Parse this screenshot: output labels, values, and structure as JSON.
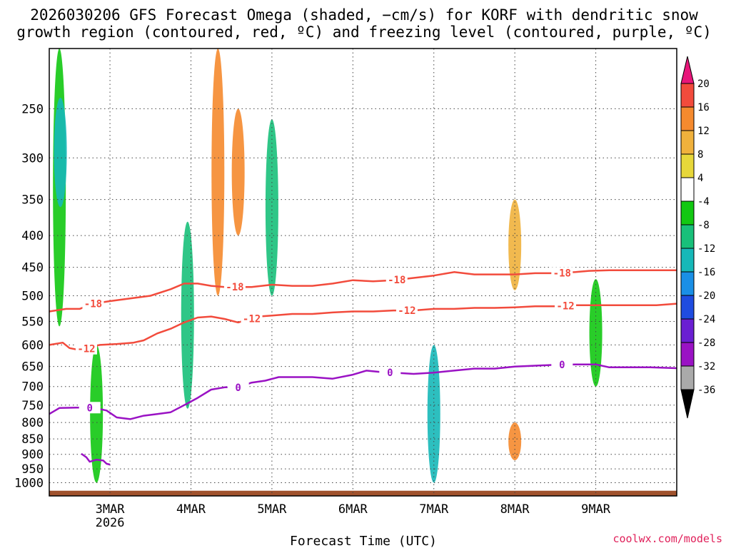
{
  "title": {
    "line1": "2026030206 GFS Forecast Omega (shaded, −cm/s) for KORF with dendritic snow",
    "line2": "growth region (contoured, red, ºC) and freezing level (contoured, purple, ºC)"
  },
  "xlabel": "Forecast Time (UTC)",
  "credit": "coolwx.com/models",
  "chart_data": {
    "type": "time-height cross section",
    "title": "2026030206 GFS Forecast Omega (shaded, −cm/s) for KORF with dendritic snow growth region (contoured, red, ºC) and freezing level (contoured, purple, ºC)",
    "xlabel": "Forecast Time (UTC)",
    "x_range_hours": [
      0,
      186
    ],
    "x_ticks": [
      {
        "hour": 18,
        "label": "3MAR",
        "sublabel": "2026"
      },
      {
        "hour": 42,
        "label": "4MAR"
      },
      {
        "hour": 66,
        "label": "5MAR"
      },
      {
        "hour": 90,
        "label": "6MAR"
      },
      {
        "hour": 114,
        "label": "7MAR"
      },
      {
        "hour": 138,
        "label": "8MAR"
      },
      {
        "hour": 162,
        "label": "9MAR"
      }
    ],
    "y_scale": "log",
    "y_range_hpa": [
      1050,
      200
    ],
    "y_ticks": [
      250,
      300,
      350,
      400,
      450,
      500,
      550,
      600,
      650,
      700,
      750,
      800,
      850,
      900,
      950,
      1000
    ],
    "colorbar": {
      "levels": [
        20,
        16,
        12,
        8,
        4,
        -4,
        -8,
        -12,
        -16,
        -20,
        -24,
        -28,
        -32,
        -36
      ],
      "colors": [
        "#e8167a",
        "#f24b3c",
        "#f58a2e",
        "#f0b13c",
        "#e7d73a",
        "#ffffff",
        "#12c812",
        "#18c07a",
        "#16b8b8",
        "#1a8fe6",
        "#1f4ce0",
        "#6a1fd2",
        "#9a12c4",
        "#aaaaaa",
        "#000000"
      ]
    },
    "contours": [
      {
        "name": "-18",
        "color": "#f24b3c",
        "points": [
          [
            0,
            530
          ],
          [
            5,
            525
          ],
          [
            9,
            525
          ],
          [
            13,
            515
          ],
          [
            18,
            510
          ],
          [
            24,
            505
          ],
          [
            30,
            500
          ],
          [
            36,
            488
          ],
          [
            40,
            478
          ],
          [
            44,
            478
          ],
          [
            48,
            482
          ],
          [
            52,
            484
          ],
          [
            56,
            484
          ],
          [
            60,
            484
          ],
          [
            66,
            480
          ],
          [
            72,
            482
          ],
          [
            78,
            482
          ],
          [
            84,
            478
          ],
          [
            90,
            472
          ],
          [
            96,
            474
          ],
          [
            102,
            472
          ],
          [
            108,
            468
          ],
          [
            114,
            464
          ],
          [
            120,
            458
          ],
          [
            126,
            462
          ],
          [
            132,
            462
          ],
          [
            138,
            462
          ],
          [
            144,
            460
          ],
          [
            150,
            460
          ],
          [
            156,
            458
          ],
          [
            160,
            456
          ],
          [
            166,
            455
          ],
          [
            172,
            455
          ],
          [
            178,
            455
          ],
          [
            186,
            455
          ]
        ],
        "labels": [
          [
            13,
            "-18"
          ],
          [
            55,
            "-18"
          ],
          [
            103,
            "-18"
          ],
          [
            152,
            "-18"
          ]
        ]
      },
      {
        "name": "-12",
        "color": "#f24b3c",
        "points": [
          [
            0,
            600
          ],
          [
            4,
            595
          ],
          [
            6,
            607
          ],
          [
            8,
            610
          ],
          [
            10,
            612
          ],
          [
            12,
            605
          ],
          [
            15,
            600
          ],
          [
            20,
            598
          ],
          [
            25,
            595
          ],
          [
            28,
            590
          ],
          [
            32,
            575
          ],
          [
            36,
            565
          ],
          [
            40,
            552
          ],
          [
            44,
            542
          ],
          [
            48,
            540
          ],
          [
            52,
            545
          ],
          [
            56,
            552
          ],
          [
            58,
            548
          ],
          [
            62,
            540
          ],
          [
            66,
            538
          ],
          [
            72,
            535
          ],
          [
            78,
            535
          ],
          [
            84,
            532
          ],
          [
            90,
            530
          ],
          [
            96,
            530
          ],
          [
            102,
            528
          ],
          [
            108,
            528
          ],
          [
            114,
            525
          ],
          [
            120,
            525
          ],
          [
            126,
            523
          ],
          [
            132,
            523
          ],
          [
            138,
            522
          ],
          [
            144,
            520
          ],
          [
            150,
            520
          ],
          [
            156,
            518
          ],
          [
            160,
            518
          ],
          [
            166,
            518
          ],
          [
            172,
            518
          ],
          [
            180,
            518
          ],
          [
            186,
            515
          ]
        ],
        "labels": [
          [
            11,
            "-12"
          ],
          [
            60,
            "-12"
          ],
          [
            106,
            "-12"
          ],
          [
            153,
            "-12"
          ]
        ]
      },
      {
        "name": "0",
        "color": "#9a12c4",
        "points": [
          [
            0,
            775
          ],
          [
            3,
            758
          ],
          [
            8,
            757
          ],
          [
            13,
            757
          ],
          [
            17,
            765
          ],
          [
            20,
            785
          ],
          [
            24,
            790
          ],
          [
            28,
            780
          ],
          [
            32,
            775
          ],
          [
            36,
            770
          ],
          [
            40,
            750
          ],
          [
            44,
            730
          ],
          [
            48,
            708
          ],
          [
            52,
            702
          ],
          [
            56,
            702
          ],
          [
            60,
            690
          ],
          [
            64,
            685
          ],
          [
            68,
            676
          ],
          [
            72,
            676
          ],
          [
            78,
            676
          ],
          [
            84,
            680
          ],
          [
            90,
            670
          ],
          [
            94,
            660
          ],
          [
            98,
            663
          ],
          [
            102,
            665
          ],
          [
            108,
            668
          ],
          [
            114,
            665
          ],
          [
            120,
            660
          ],
          [
            126,
            655
          ],
          [
            132,
            655
          ],
          [
            138,
            650
          ],
          [
            144,
            648
          ],
          [
            150,
            646
          ],
          [
            156,
            645
          ],
          [
            162,
            645
          ],
          [
            166,
            652
          ],
          [
            172,
            652
          ],
          [
            178,
            652
          ],
          [
            186,
            654
          ]
        ],
        "labels": [
          [
            12,
            "0"
          ],
          [
            56,
            "0"
          ],
          [
            101,
            "0"
          ],
          [
            152,
            "0"
          ]
        ]
      },
      {
        "name": "0-loop",
        "color": "#9a12c4",
        "points": [
          [
            9.5,
            898
          ],
          [
            11,
            910
          ],
          [
            12,
            925
          ],
          [
            14,
            918
          ],
          [
            16,
            921
          ],
          [
            17,
            932
          ],
          [
            18,
            935
          ]
        ],
        "labels": []
      }
    ],
    "shaded_features": [
      {
        "hour": 3,
        "p_top": 200,
        "p_bottom": 560,
        "omega": -8
      },
      {
        "hour": 3.3,
        "p_top": 240,
        "p_bottom": 360,
        "omega": -14
      },
      {
        "hour": 14,
        "p_top": 600,
        "p_bottom": 1000,
        "omega": -8
      },
      {
        "hour": 41,
        "p_top": 380,
        "p_bottom": 760,
        "omega": -10
      },
      {
        "hour": 50,
        "p_top": 200,
        "p_bottom": 500,
        "omega": 12
      },
      {
        "hour": 56,
        "p_top": 250,
        "p_bottom": 400,
        "omega": 14
      },
      {
        "hour": 66,
        "p_top": 260,
        "p_bottom": 500,
        "omega": -12
      },
      {
        "hour": 114,
        "p_top": 600,
        "p_bottom": 1000,
        "omega": -14
      },
      {
        "hour": 138,
        "p_top": 350,
        "p_bottom": 490,
        "omega": 8
      },
      {
        "hour": 138,
        "p_top": 800,
        "p_bottom": 920,
        "omega": 12
      },
      {
        "hour": 162,
        "p_top": 470,
        "p_bottom": 700,
        "omega": -8
      }
    ],
    "terrain_surface_hpa": 1030
  }
}
